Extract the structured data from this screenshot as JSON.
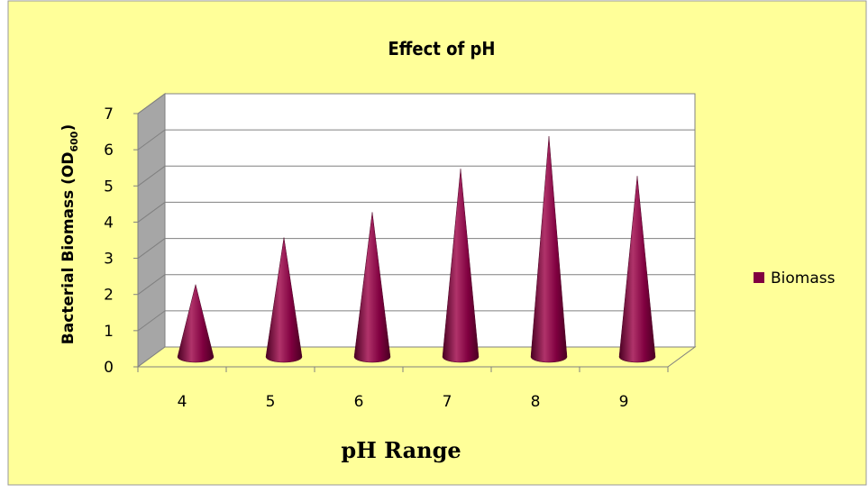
{
  "chart_data": {
    "type": "bar",
    "style": "3d-cone",
    "title": "Effect of pH",
    "xlabel": "pH Range",
    "ylabel_main": "Bacterial Biomass (OD",
    "ylabel_sub": "600",
    "ylabel_end": ")",
    "categories": [
      "4",
      "5",
      "6",
      "7",
      "8",
      "9"
    ],
    "series": [
      {
        "name": "Biomass",
        "values": [
          2.0,
          3.3,
          4.0,
          5.2,
          6.1,
          5.0
        ]
      }
    ],
    "ylim": [
      0,
      7
    ],
    "yticks": [
      "0",
      "1",
      "2",
      "3",
      "4",
      "5",
      "6",
      "7"
    ],
    "grid": true,
    "legend_position": "right",
    "colors": {
      "background": "#FFFF99",
      "plot_back": "#FFFFFF",
      "floor": "#FFFF99",
      "side_wall": "#A6A6A6",
      "cone": "#800040",
      "cone_dark": "#4A0022",
      "cone_light": "#B0336A"
    }
  }
}
